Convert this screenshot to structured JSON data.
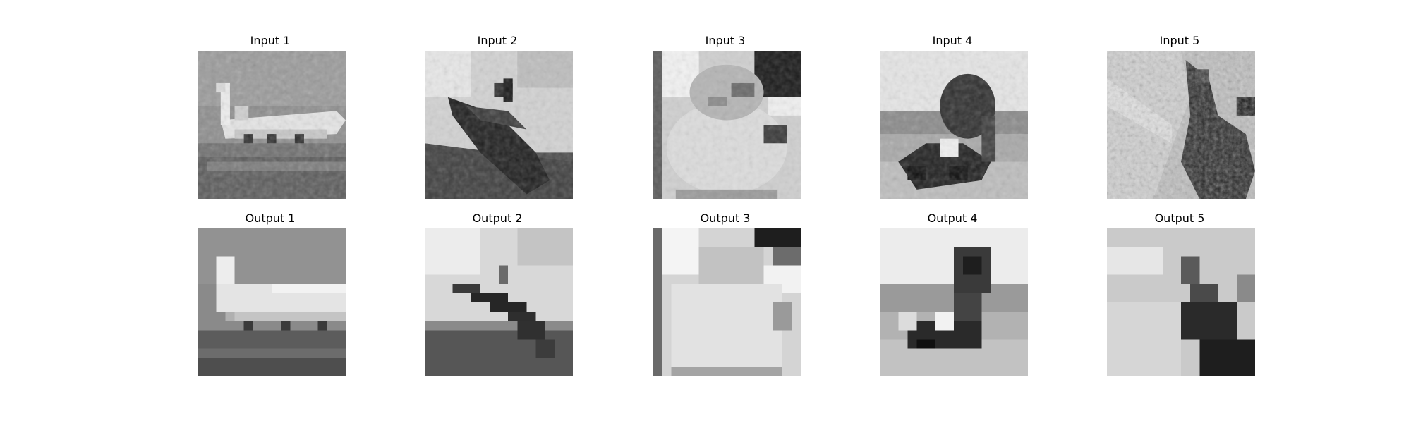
{
  "figure": {
    "rows": [
      {
        "kind": "input",
        "panels": [
          {
            "title": "Input 1",
            "image": "airplane-grayscale-thumbnail"
          },
          {
            "title": "Input 2",
            "image": "ship-grayscale-thumbnail"
          },
          {
            "title": "Input 3",
            "image": "cat-grayscale-thumbnail"
          },
          {
            "title": "Input 4",
            "image": "frog-grayscale-thumbnail"
          },
          {
            "title": "Input 5",
            "image": "bird-grayscale-thumbnail"
          }
        ]
      },
      {
        "kind": "output",
        "panels": [
          {
            "title": "Output 1",
            "image": "airplane-reconstruction-thumbnail"
          },
          {
            "title": "Output 2",
            "image": "ship-reconstruction-thumbnail"
          },
          {
            "title": "Output 3",
            "image": "cat-reconstruction-thumbnail"
          },
          {
            "title": "Output 4",
            "image": "frog-reconstruction-thumbnail"
          },
          {
            "title": "Output 5",
            "image": "bird-reconstruction-thumbnail"
          }
        ]
      }
    ]
  }
}
